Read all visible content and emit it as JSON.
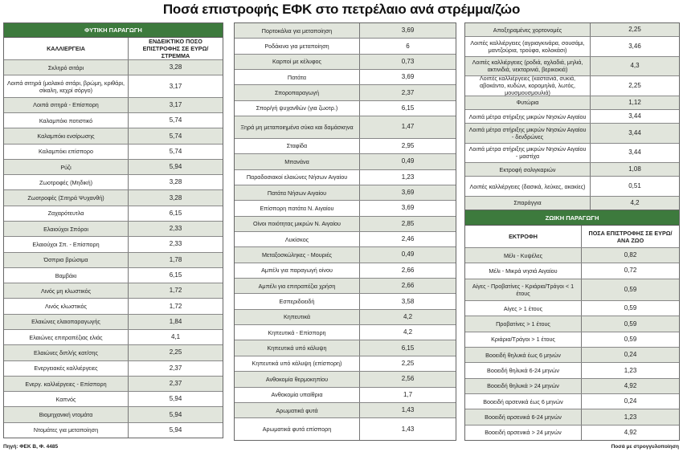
{
  "title": "Ποσά επιστροφής ΕΦΚ στο πετρέλαιο ανά στρέμμα/ζώο",
  "plant": {
    "section_title": "ΦΥΤΙΚΗ ΠΑΡΑΓΩΓΗ",
    "col_crop": "ΚΑΛΛΙΕΡΓΕΙΑ",
    "col_amount": "ΕΝΔΕΙΚΤΙΚΟ ΠΟΣΟ ΕΠΙΣΤΡΟΦΗΣ ΣΕ ΕΥΡΩ/ΣΤΡΕΜΜΑ",
    "rows_col1": [
      {
        "name": "Σκληρό σιτάρι",
        "value": "3,28"
      },
      {
        "name": "Λοιπά σιτηρά (μαλακό σιτάρι, βρώμη, κριθάρι, σίκαλη, κεχρί σόργο)",
        "value": "3,17",
        "tall": true
      },
      {
        "name": "Λοιπά σιτηρά - Επίσπορη",
        "value": "3,17"
      },
      {
        "name": "Καλαμπόκι ποτιστικό",
        "value": "5,74"
      },
      {
        "name": "Καλαμπόκι ενσίρωσης",
        "value": "5,74"
      },
      {
        "name": "Καλαμπόκι επίσπορο",
        "value": "5,74"
      },
      {
        "name": "Ρύζι",
        "value": "5,94"
      },
      {
        "name": "Ζωοτροφές (Μηδική)",
        "value": "3,28"
      },
      {
        "name": "Ζωοτροφές (Σιτηρά Ψυχανθή)",
        "value": "3,28"
      },
      {
        "name": "Ζαχαρότευτλα",
        "value": "6,15"
      },
      {
        "name": "Ελαιούχοι Σπόροι",
        "value": "2,33"
      },
      {
        "name": "Ελαιούχοι Σπ. - Επίσπορη",
        "value": "2,33"
      },
      {
        "name": "Όσπρια βρώσιμα",
        "value": "1,78"
      },
      {
        "name": "Βαμβάκι",
        "value": "6,15"
      },
      {
        "name": "Λινός μη κλωστικός",
        "value": "1,72"
      },
      {
        "name": "Λινός κλωστικός",
        "value": "1,72"
      },
      {
        "name": "Ελαιώνες ελαιοπαραγωγής",
        "value": "1,84"
      },
      {
        "name": "Ελαιώνες επιτραπέζιας ελιάς",
        "value": "4,1"
      },
      {
        "name": "Ελαιώνες διπλής κατ/σης",
        "value": "2,25"
      },
      {
        "name": "Ενεργειακές καλλιέργειες",
        "value": "2,37"
      },
      {
        "name": "Ενεργ. καλλιέργειες - Επίσπορη",
        "value": "2,37"
      },
      {
        "name": "Καπνός",
        "value": "5,94"
      },
      {
        "name": "Βιομηχανική ντομάτα",
        "value": "5,94"
      },
      {
        "name": "Ντομάτες για μεταποίηση",
        "value": "5,94"
      }
    ],
    "rows_col2": [
      {
        "name": "Πορτοκάλια για μεταποίηση",
        "value": "3,69"
      },
      {
        "name": "Ροδάκινα για μεταποίηση",
        "value": "6"
      },
      {
        "name": "Καρποί με κέλυφος",
        "value": "0,73"
      },
      {
        "name": "Πατάτα",
        "value": "3,69"
      },
      {
        "name": "Σποροπαραγωγή",
        "value": "2,37"
      },
      {
        "name": "Σπορ/γή ψυχανθών (για ζωοτρ.)",
        "value": "6,15"
      },
      {
        "name": "Ξηρά μη μεταποιημένα σύκα και δαμάσκηνα",
        "value": "1,47",
        "tall": true
      },
      {
        "name": "Σταφίδα",
        "value": "2,95"
      },
      {
        "name": "Μπανάνα",
        "value": "0,49"
      },
      {
        "name": "Παραδοσιακοί ελαιώνες Νήσων Αιγαίου",
        "value": "1,23"
      },
      {
        "name": "Πατάτα Νήσων Αιγαίου",
        "value": "3,69"
      },
      {
        "name": "Επίσπορη πατάτα Ν. Αιγαίου",
        "value": "3,69"
      },
      {
        "name": "Οίνοι ποιότητας μικρών Ν. Αιγαίου",
        "value": "2,85"
      },
      {
        "name": "Λυκίσκος",
        "value": "2,46"
      },
      {
        "name": "Μεταξοσκώληκες - Μουριές",
        "value": "0,49"
      },
      {
        "name": "Αμπέλι για παραγωγή οίνου",
        "value": "2,66"
      },
      {
        "name": "Αμπέλι για επιτραπέζια χρήση",
        "value": "2,66"
      },
      {
        "name": "Εσπεριδοειδή",
        "value": "3,58"
      },
      {
        "name": "Κηπευτικά",
        "value": "4,2"
      },
      {
        "name": "Κηπευτικά - Επίσπορη",
        "value": "4,2"
      },
      {
        "name": "Κηπευτικά υπό κάλυψη",
        "value": "6,15"
      },
      {
        "name": "Κηπευτικά υπό κάλυψη (επίσπορη)",
        "value": "2,25"
      },
      {
        "name": "Ανθοκομία θερμοκηπίου",
        "value": "2,56"
      },
      {
        "name": "Ανθοκομία υπαίθρια",
        "value": "1,7"
      },
      {
        "name": "Αρωματικά φυτά",
        "value": "1,43"
      },
      {
        "name": "Αρωματικά φυτά επίσπορη",
        "value": "1,43",
        "tall": true
      }
    ],
    "rows_col3": [
      {
        "name": "Αποξηραμένες χορτονομές",
        "value": "2,25"
      },
      {
        "name": "Λοιπές καλλιέργειες (αγριαγκινάρα, σουσάμι, μαντζούρια, τρούφα, κολοκάσι)",
        "value": "3,46",
        "tall": true
      },
      {
        "name": "Λοιπές καλλιέργειες (ροδιά, αχλαδιά, μηλιά, ακτινιδιά, νεκταρινιά, βερικοκιά)",
        "value": "4,3",
        "tall": true
      },
      {
        "name": "Λοιπές καλλιέργειες (καστανιά, συκιά, αβοκάντο, κυδώνι, κορομηλιά, λωτός, μουσμουσμουλιά)",
        "value": "2,25",
        "tall": true
      },
      {
        "name": "Φυτώρια",
        "value": "1,12"
      },
      {
        "name": "Λοιπά μέτρα στήριξης μικρών Νησιών Αιγαίου",
        "value": "3,44"
      },
      {
        "name": "Λοιπά μέτρα στήριξης μικρών Νησιών Αιγαίου - δενδρώνες",
        "value": "3,44",
        "tall": true
      },
      {
        "name": "Λοιπά μέτρα στήριξης μικρών Νησιών Αιγαίου - μαστίχα",
        "value": "3,44",
        "tall": true
      },
      {
        "name": "Εκτροφή σαλιγκαριών",
        "value": "1,08"
      },
      {
        "name": "Λοιπές καλλιέργειες (δασικά, λεύκες, ακακίες)",
        "value": "0,51",
        "tall": true
      },
      {
        "name": "Σπαράγγια",
        "value": "4,2"
      }
    ]
  },
  "animal": {
    "section_title": "ΖΩΙΚΗ ΠΑΡΑΓΩΓΗ",
    "col_type": "ΕΚΤΡΟΦΗ",
    "col_amount": "ΠΟΣΑ ΕΠΙΣΤΡΟΦΗΣ ΣΕ ΕΥΡΩ/ΑΝΑ ΖΩΟ",
    "rows": [
      {
        "name": "Μέλι - Κυψέλες",
        "value": "0,82"
      },
      {
        "name": "Μέλι - Μικρά νησιά Αιγαίου",
        "value": "0,72"
      },
      {
        "name": "Αίγες - Προβατίνες - Κριάρια/Τράγοι < 1 έτους",
        "value": "0,59",
        "tall": true
      },
      {
        "name": "Αίγες > 1 έτους",
        "value": "0,59"
      },
      {
        "name": "Προβατίνες > 1 έτους",
        "value": "0,59"
      },
      {
        "name": "Κριάρια/Τράγοι > 1 έτους",
        "value": "0,59"
      },
      {
        "name": "Βοοειδή θηλυκά έως 6 μηνών",
        "value": "0,24"
      },
      {
        "name": "Βοοειδή θηλυκά 6-24 μηνών",
        "value": "1,23"
      },
      {
        "name": "Βοοειδή θηλυκά > 24 μηνών",
        "value": "4,92"
      },
      {
        "name": "Βοοειδή αρσενικά έως 6 μηνών",
        "value": "0,24"
      },
      {
        "name": "Βοοειδή αρσενικά 6-24 μηνών",
        "value": "1,23"
      },
      {
        "name": "Βοοειδή αρσενικά > 24 μηνών",
        "value": "4,92"
      }
    ]
  },
  "footer": {
    "source": "Πηγή: ΦΕΚ Β, Φ. 4485",
    "note": "Ποσά με στρογγυλοποίηση"
  },
  "colors": {
    "header_green": "#3d7a3d",
    "row_shade": "#e1e5dc"
  }
}
